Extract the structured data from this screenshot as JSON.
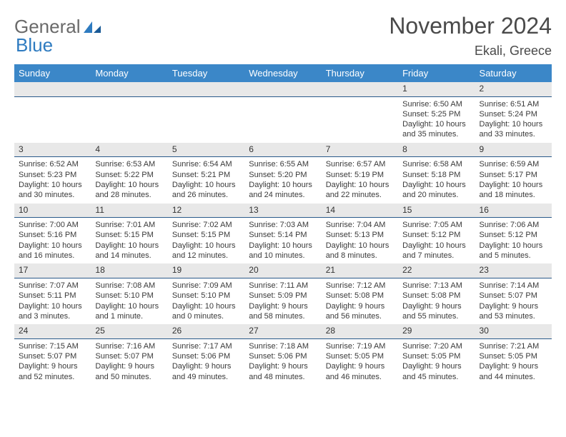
{
  "logo": {
    "text1": "General",
    "text2": "Blue"
  },
  "title": "November 2024",
  "location": "Ekali, Greece",
  "dayHeaders": [
    "Sunday",
    "Monday",
    "Tuesday",
    "Wednesday",
    "Thursday",
    "Friday",
    "Saturday"
  ],
  "colors": {
    "headerBg": "#3b87c8",
    "headerText": "#ffffff",
    "dayBarBg": "#e8e8e8",
    "dayBarBorder": "#2a5a8a",
    "text": "#3a3a3a",
    "logoBlue": "#2e7bc0"
  },
  "weeks": [
    [
      {
        "num": "",
        "sunrise": "",
        "sunset": "",
        "daylight": ""
      },
      {
        "num": "",
        "sunrise": "",
        "sunset": "",
        "daylight": ""
      },
      {
        "num": "",
        "sunrise": "",
        "sunset": "",
        "daylight": ""
      },
      {
        "num": "",
        "sunrise": "",
        "sunset": "",
        "daylight": ""
      },
      {
        "num": "",
        "sunrise": "",
        "sunset": "",
        "daylight": ""
      },
      {
        "num": "1",
        "sunrise": "Sunrise: 6:50 AM",
        "sunset": "Sunset: 5:25 PM",
        "daylight": "Daylight: 10 hours and 35 minutes."
      },
      {
        "num": "2",
        "sunrise": "Sunrise: 6:51 AM",
        "sunset": "Sunset: 5:24 PM",
        "daylight": "Daylight: 10 hours and 33 minutes."
      }
    ],
    [
      {
        "num": "3",
        "sunrise": "Sunrise: 6:52 AM",
        "sunset": "Sunset: 5:23 PM",
        "daylight": "Daylight: 10 hours and 30 minutes."
      },
      {
        "num": "4",
        "sunrise": "Sunrise: 6:53 AM",
        "sunset": "Sunset: 5:22 PM",
        "daylight": "Daylight: 10 hours and 28 minutes."
      },
      {
        "num": "5",
        "sunrise": "Sunrise: 6:54 AM",
        "sunset": "Sunset: 5:21 PM",
        "daylight": "Daylight: 10 hours and 26 minutes."
      },
      {
        "num": "6",
        "sunrise": "Sunrise: 6:55 AM",
        "sunset": "Sunset: 5:20 PM",
        "daylight": "Daylight: 10 hours and 24 minutes."
      },
      {
        "num": "7",
        "sunrise": "Sunrise: 6:57 AM",
        "sunset": "Sunset: 5:19 PM",
        "daylight": "Daylight: 10 hours and 22 minutes."
      },
      {
        "num": "8",
        "sunrise": "Sunrise: 6:58 AM",
        "sunset": "Sunset: 5:18 PM",
        "daylight": "Daylight: 10 hours and 20 minutes."
      },
      {
        "num": "9",
        "sunrise": "Sunrise: 6:59 AM",
        "sunset": "Sunset: 5:17 PM",
        "daylight": "Daylight: 10 hours and 18 minutes."
      }
    ],
    [
      {
        "num": "10",
        "sunrise": "Sunrise: 7:00 AM",
        "sunset": "Sunset: 5:16 PM",
        "daylight": "Daylight: 10 hours and 16 minutes."
      },
      {
        "num": "11",
        "sunrise": "Sunrise: 7:01 AM",
        "sunset": "Sunset: 5:15 PM",
        "daylight": "Daylight: 10 hours and 14 minutes."
      },
      {
        "num": "12",
        "sunrise": "Sunrise: 7:02 AM",
        "sunset": "Sunset: 5:15 PM",
        "daylight": "Daylight: 10 hours and 12 minutes."
      },
      {
        "num": "13",
        "sunrise": "Sunrise: 7:03 AM",
        "sunset": "Sunset: 5:14 PM",
        "daylight": "Daylight: 10 hours and 10 minutes."
      },
      {
        "num": "14",
        "sunrise": "Sunrise: 7:04 AM",
        "sunset": "Sunset: 5:13 PM",
        "daylight": "Daylight: 10 hours and 8 minutes."
      },
      {
        "num": "15",
        "sunrise": "Sunrise: 7:05 AM",
        "sunset": "Sunset: 5:12 PM",
        "daylight": "Daylight: 10 hours and 7 minutes."
      },
      {
        "num": "16",
        "sunrise": "Sunrise: 7:06 AM",
        "sunset": "Sunset: 5:12 PM",
        "daylight": "Daylight: 10 hours and 5 minutes."
      }
    ],
    [
      {
        "num": "17",
        "sunrise": "Sunrise: 7:07 AM",
        "sunset": "Sunset: 5:11 PM",
        "daylight": "Daylight: 10 hours and 3 minutes."
      },
      {
        "num": "18",
        "sunrise": "Sunrise: 7:08 AM",
        "sunset": "Sunset: 5:10 PM",
        "daylight": "Daylight: 10 hours and 1 minute."
      },
      {
        "num": "19",
        "sunrise": "Sunrise: 7:09 AM",
        "sunset": "Sunset: 5:10 PM",
        "daylight": "Daylight: 10 hours and 0 minutes."
      },
      {
        "num": "20",
        "sunrise": "Sunrise: 7:11 AM",
        "sunset": "Sunset: 5:09 PM",
        "daylight": "Daylight: 9 hours and 58 minutes."
      },
      {
        "num": "21",
        "sunrise": "Sunrise: 7:12 AM",
        "sunset": "Sunset: 5:08 PM",
        "daylight": "Daylight: 9 hours and 56 minutes."
      },
      {
        "num": "22",
        "sunrise": "Sunrise: 7:13 AM",
        "sunset": "Sunset: 5:08 PM",
        "daylight": "Daylight: 9 hours and 55 minutes."
      },
      {
        "num": "23",
        "sunrise": "Sunrise: 7:14 AM",
        "sunset": "Sunset: 5:07 PM",
        "daylight": "Daylight: 9 hours and 53 minutes."
      }
    ],
    [
      {
        "num": "24",
        "sunrise": "Sunrise: 7:15 AM",
        "sunset": "Sunset: 5:07 PM",
        "daylight": "Daylight: 9 hours and 52 minutes."
      },
      {
        "num": "25",
        "sunrise": "Sunrise: 7:16 AM",
        "sunset": "Sunset: 5:07 PM",
        "daylight": "Daylight: 9 hours and 50 minutes."
      },
      {
        "num": "26",
        "sunrise": "Sunrise: 7:17 AM",
        "sunset": "Sunset: 5:06 PM",
        "daylight": "Daylight: 9 hours and 49 minutes."
      },
      {
        "num": "27",
        "sunrise": "Sunrise: 7:18 AM",
        "sunset": "Sunset: 5:06 PM",
        "daylight": "Daylight: 9 hours and 48 minutes."
      },
      {
        "num": "28",
        "sunrise": "Sunrise: 7:19 AM",
        "sunset": "Sunset: 5:05 PM",
        "daylight": "Daylight: 9 hours and 46 minutes."
      },
      {
        "num": "29",
        "sunrise": "Sunrise: 7:20 AM",
        "sunset": "Sunset: 5:05 PM",
        "daylight": "Daylight: 9 hours and 45 minutes."
      },
      {
        "num": "30",
        "sunrise": "Sunrise: 7:21 AM",
        "sunset": "Sunset: 5:05 PM",
        "daylight": "Daylight: 9 hours and 44 minutes."
      }
    ]
  ]
}
